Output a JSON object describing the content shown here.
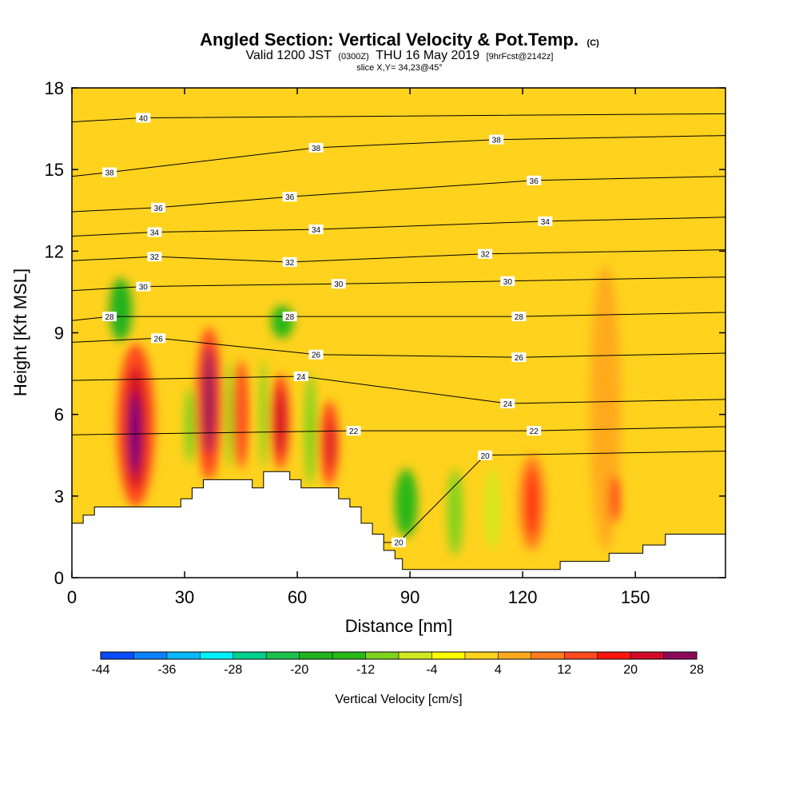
{
  "title": {
    "main": "Angled Section: Vertical Velocity & Pot.Temp.",
    "unit_tag": "(C)",
    "valid_prefix": "Valid 1200 JST",
    "valid_utc": "(0300Z)",
    "valid_date": "THU 16 May 2019",
    "forecast": "[9hrFcst@2142z]",
    "slice": "slice X,Y= 34,23@45°"
  },
  "chart_data": {
    "type": "heatmap",
    "xlabel": "Distance [nm]",
    "ylabel": "Height [Kft MSL]",
    "xlim": [
      0,
      174
    ],
    "ylim": [
      0,
      18
    ],
    "x_ticks": [
      0,
      30,
      60,
      90,
      120,
      150
    ],
    "y_ticks": [
      0,
      3,
      6,
      9,
      12,
      15,
      18
    ],
    "background_color": "#ffd21e",
    "terrain": [
      [
        0,
        2
      ],
      [
        3,
        2
      ],
      [
        3,
        2.3
      ],
      [
        6,
        2.3
      ],
      [
        6,
        2.6
      ],
      [
        29,
        2.6
      ],
      [
        29,
        2.9
      ],
      [
        32,
        2.9
      ],
      [
        32,
        3.3
      ],
      [
        35,
        3.3
      ],
      [
        35,
        3.6
      ],
      [
        48,
        3.6
      ],
      [
        48,
        3.3
      ],
      [
        51,
        3.3
      ],
      [
        51,
        3.9
      ],
      [
        58,
        3.9
      ],
      [
        58,
        3.6
      ],
      [
        61,
        3.6
      ],
      [
        61,
        3.3
      ],
      [
        71,
        3.3
      ],
      [
        71,
        2.9
      ],
      [
        74,
        2.9
      ],
      [
        74,
        2.6
      ],
      [
        77,
        2.6
      ],
      [
        77,
        2
      ],
      [
        80,
        2
      ],
      [
        80,
        1.6
      ],
      [
        83,
        1.6
      ],
      [
        83,
        1
      ],
      [
        86,
        1
      ],
      [
        86,
        0.7
      ],
      [
        88,
        0.7
      ],
      [
        88,
        0.3
      ],
      [
        130,
        0.3
      ],
      [
        130,
        0.6
      ],
      [
        143,
        0.6
      ],
      [
        143,
        0.9
      ],
      [
        152,
        0.9
      ],
      [
        152,
        1.2
      ],
      [
        158,
        1.2
      ],
      [
        158,
        1.6
      ],
      [
        174,
        1.6
      ]
    ],
    "vertical_velocity_cells": [
      {
        "x": [
          10,
          16
        ],
        "y": [
          8.7,
          11
        ],
        "value": -18
      },
      {
        "x": [
          12,
          22
        ],
        "y": [
          2.6,
          8.6
        ],
        "value": 12
      },
      {
        "x": [
          14,
          20
        ],
        "y": [
          3.2,
          7.8
        ],
        "value": 20
      },
      {
        "x": [
          15.5,
          18
        ],
        "y": [
          3.8,
          6.8
        ],
        "value": 28
      },
      {
        "x": [
          30,
          33
        ],
        "y": [
          4.2,
          7
        ],
        "value": -12
      },
      {
        "x": [
          33,
          40
        ],
        "y": [
          3.6,
          9.2
        ],
        "value": 12
      },
      {
        "x": [
          35,
          38
        ],
        "y": [
          4.5,
          8.5
        ],
        "value": 24
      },
      {
        "x": [
          41,
          43
        ],
        "y": [
          4,
          8
        ],
        "value": -10
      },
      {
        "x": [
          43,
          47
        ],
        "y": [
          4,
          8
        ],
        "value": 14
      },
      {
        "x": [
          50,
          52
        ],
        "y": [
          4,
          8
        ],
        "value": -12
      },
      {
        "x": [
          53,
          58
        ],
        "y": [
          4,
          7.5
        ],
        "value": 12
      },
      {
        "x": [
          54,
          57
        ],
        "y": [
          4.5,
          7
        ],
        "value": 20
      },
      {
        "x": [
          53,
          59
        ],
        "y": [
          8.8,
          10
        ],
        "value": -16
      },
      {
        "x": [
          62,
          65
        ],
        "y": [
          3.4,
          7.5
        ],
        "value": -10
      },
      {
        "x": [
          66,
          71
        ],
        "y": [
          3.4,
          6.5
        ],
        "value": 14
      },
      {
        "x": [
          68,
          70
        ],
        "y": [
          4,
          5.8
        ],
        "value": 20
      },
      {
        "x": [
          86,
          92
        ],
        "y": [
          1.5,
          4
        ],
        "value": -16
      },
      {
        "x": [
          100,
          104
        ],
        "y": [
          0.8,
          4
        ],
        "value": -10
      },
      {
        "x": [
          110,
          114
        ],
        "y": [
          1,
          4
        ],
        "value": -8
      },
      {
        "x": [
          119,
          126
        ],
        "y": [
          1,
          4.5
        ],
        "value": 10
      },
      {
        "x": [
          121,
          124
        ],
        "y": [
          1.5,
          4
        ],
        "value": 16
      },
      {
        "x": [
          138,
          146
        ],
        "y": [
          1,
          11.5
        ],
        "value": 4
      },
      {
        "x": [
          143,
          146
        ],
        "y": [
          2,
          3.8
        ],
        "value": 12
      }
    ],
    "contour_labels": [
      {
        "text": "40",
        "x": 19,
        "y": 16.9
      },
      {
        "text": "38",
        "x": 10,
        "y": 14.9
      },
      {
        "text": "38",
        "x": 65,
        "y": 15.8
      },
      {
        "text": "38",
        "x": 113,
        "y": 16.1
      },
      {
        "text": "36",
        "x": 23,
        "y": 13.6
      },
      {
        "text": "36",
        "x": 58,
        "y": 14.0
      },
      {
        "text": "36",
        "x": 123,
        "y": 14.6
      },
      {
        "text": "34",
        "x": 22,
        "y": 12.7
      },
      {
        "text": "34",
        "x": 65,
        "y": 12.8
      },
      {
        "text": "34",
        "x": 126,
        "y": 13.1
      },
      {
        "text": "32",
        "x": 22,
        "y": 11.8
      },
      {
        "text": "32",
        "x": 58,
        "y": 11.6
      },
      {
        "text": "32",
        "x": 110,
        "y": 11.9
      },
      {
        "text": "30",
        "x": 19,
        "y": 10.7
      },
      {
        "text": "30",
        "x": 71,
        "y": 10.8
      },
      {
        "text": "30",
        "x": 116,
        "y": 10.9
      },
      {
        "text": "28",
        "x": 10,
        "y": 9.6
      },
      {
        "text": "28",
        "x": 58,
        "y": 9.6
      },
      {
        "text": "28",
        "x": 119,
        "y": 9.6
      },
      {
        "text": "26",
        "x": 23,
        "y": 8.8
      },
      {
        "text": "26",
        "x": 65,
        "y": 8.2
      },
      {
        "text": "26",
        "x": 119,
        "y": 8.1
      },
      {
        "text": "24",
        "x": 61,
        "y": 7.4
      },
      {
        "text": "24",
        "x": 116,
        "y": 6.4
      },
      {
        "text": "22",
        "x": 75,
        "y": 5.4
      },
      {
        "text": "22",
        "x": 123,
        "y": 5.4
      },
      {
        "text": "20",
        "x": 110,
        "y": 4.5
      },
      {
        "text": "20",
        "x": 87,
        "y": 1.3
      }
    ],
    "colorbar": {
      "label": "Vertical Velocity [cm/s]",
      "tick_labels": [
        "-44",
        "-36",
        "-28",
        "-20",
        "-12",
        "-4",
        "4",
        "12",
        "20",
        "28"
      ],
      "levels": [
        -44,
        -40,
        -36,
        -32,
        -28,
        -24,
        -20,
        -16,
        -12,
        -8,
        -4,
        0,
        4,
        8,
        12,
        16,
        20,
        24,
        28
      ],
      "colors": [
        "#0000ff",
        "#0a4cff",
        "#0c82ff",
        "#08b8ff",
        "#00f0ff",
        "#00d08c",
        "#1cc24c",
        "#22b21e",
        "#2ab818",
        "#7fd21e",
        "#d2e81e",
        "#ffff00",
        "#ffd21e",
        "#ffaa1e",
        "#ff7d1e",
        "#ff4a1e",
        "#ff1410",
        "#d20a28",
        "#8c0a5a",
        "#4b0082"
      ]
    }
  }
}
